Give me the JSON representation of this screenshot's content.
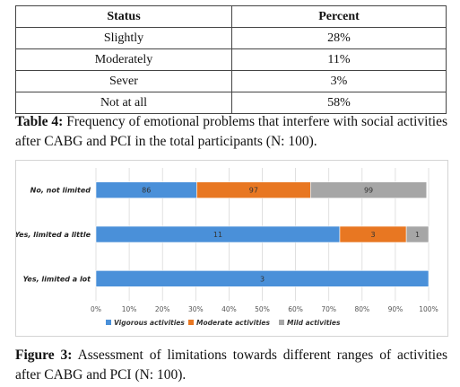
{
  "table": {
    "headers": [
      "Status",
      "Percent"
    ],
    "rows": [
      [
        "Slightly",
        "28%"
      ],
      [
        "Moderately",
        "11%"
      ],
      [
        "Sever",
        "3%"
      ],
      [
        "Not at all",
        "58%"
      ]
    ]
  },
  "table_caption": {
    "label": "Table 4:",
    "text": " Frequency of emotional problems that interfere with social activities after CABG and PCI in the total participants (N: 100)."
  },
  "figure_caption": {
    "label": "Figure 3:",
    "text": " Assessment of limitations towards different ranges of activities after CABG and PCI (N: 100)."
  },
  "chart_data": {
    "type": "bar",
    "orientation": "horizontal",
    "stacked": "percent",
    "categories": [
      "No, not limited",
      "Yes, limited a little",
      "Yes, limited a lot"
    ],
    "series": [
      {
        "name": "Vigorous activities",
        "color": "#4a90d9",
        "values": [
          86,
          11,
          3
        ],
        "share_percent": [
          30.3,
          73.3,
          100
        ]
      },
      {
        "name": "Moderate activities",
        "color": "#e87722",
        "values": [
          97,
          3,
          0
        ],
        "share_percent": [
          34.2,
          20.0,
          0
        ]
      },
      {
        "name": "Mild activities",
        "color": "#a6a6a6",
        "values": [
          99,
          1,
          0
        ],
        "share_percent": [
          34.9,
          6.7,
          0
        ]
      }
    ],
    "x_ticks": [
      "0%",
      "10%",
      "20%",
      "30%",
      "40%",
      "50%",
      "60%",
      "70%",
      "80%",
      "90%",
      "100%"
    ],
    "xlim": [
      0,
      100
    ],
    "grid": true,
    "legend_position": "bottom"
  }
}
